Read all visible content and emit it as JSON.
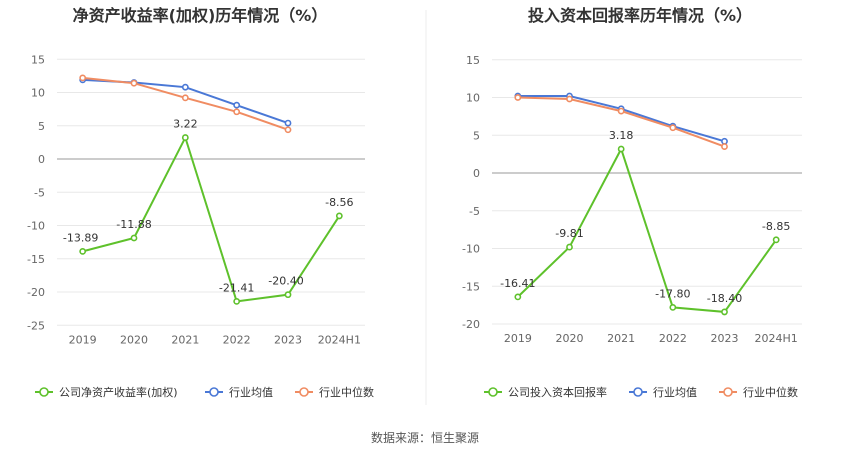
{
  "colors": {
    "company": "#5ec12b",
    "industry_avg": "#4a78d6",
    "industry_median": "#f08c62",
    "grid": "#e8e8e8",
    "axis": "#999999"
  },
  "source": "数据来源：恒生聚源",
  "chart_data": [
    {
      "type": "line",
      "title": "净资产收益率(加权)历年情况（%）",
      "categories": [
        "2019",
        "2020",
        "2021",
        "2022",
        "2023",
        "2024H1"
      ],
      "ylim": [
        -25,
        15
      ],
      "yticks": [
        15,
        10,
        5,
        0,
        -5,
        -10,
        -15,
        -20,
        -25
      ],
      "grid": true,
      "legend_position": "bottom",
      "series": [
        {
          "name": "公司净资产收益率(加权)",
          "color": "#5ec12b",
          "values": [
            -13.89,
            -11.88,
            3.22,
            -21.41,
            -20.4,
            -8.56
          ],
          "labels": [
            "-13.89",
            "-11.88",
            "3.22",
            "-21.41",
            "-20.40",
            "-8.56"
          ]
        },
        {
          "name": "行业均值",
          "color": "#4a78d6",
          "values": [
            11.9,
            11.5,
            10.8,
            8.1,
            5.4,
            null
          ]
        },
        {
          "name": "行业中位数",
          "color": "#f08c62",
          "values": [
            12.2,
            11.4,
            9.2,
            7.1,
            4.4,
            null
          ]
        }
      ]
    },
    {
      "type": "line",
      "title": "投入资本回报率历年情况（%）",
      "categories": [
        "2019",
        "2020",
        "2021",
        "2022",
        "2023",
        "2024H1"
      ],
      "ylim": [
        -20,
        15
      ],
      "yticks": [
        15,
        10,
        5,
        0,
        -5,
        -10,
        -15,
        -20
      ],
      "grid": true,
      "legend_position": "bottom",
      "series": [
        {
          "name": "公司投入资本回报率",
          "color": "#5ec12b",
          "values": [
            -16.41,
            -9.81,
            3.18,
            -17.8,
            -18.4,
            -8.85
          ],
          "labels": [
            "-16.41",
            "-9.81",
            "3.18",
            "-17.80",
            "-18.40",
            "-8.85"
          ]
        },
        {
          "name": "行业均值",
          "color": "#4a78d6",
          "values": [
            10.2,
            10.2,
            8.5,
            6.2,
            4.2,
            null
          ]
        },
        {
          "name": "行业中位数",
          "color": "#f08c62",
          "values": [
            10.0,
            9.8,
            8.2,
            6.0,
            3.5,
            null
          ]
        }
      ]
    }
  ]
}
